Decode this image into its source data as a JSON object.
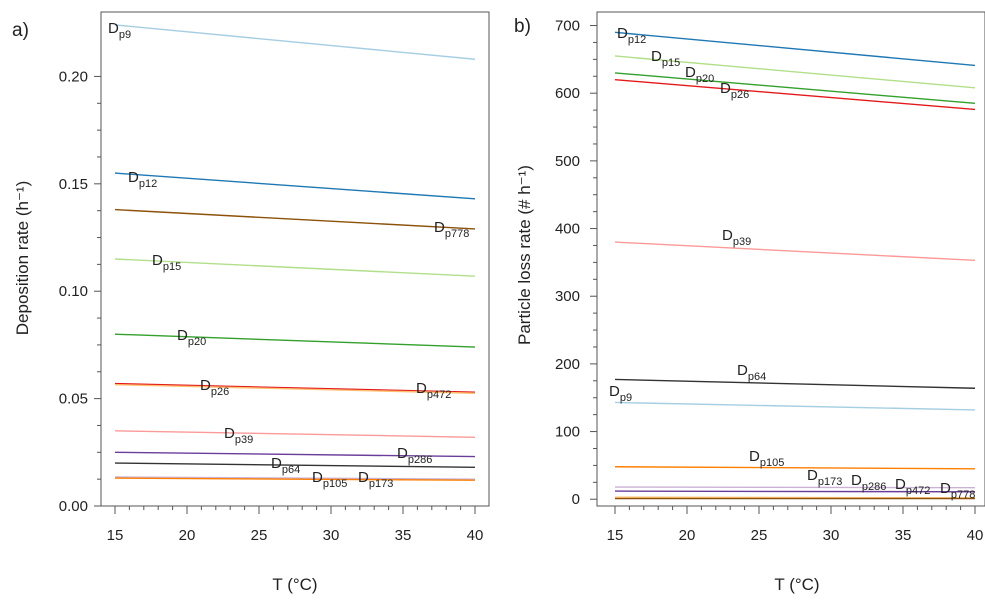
{
  "colors": {
    "dp9": "#a6cee3",
    "dp12": "#1f78b4",
    "dp15": "#b2df8a",
    "dp20": "#33a02c",
    "dp26": "#e31a1c",
    "dp39": "#fb9a99",
    "dp64": "#333333",
    "dp105": "#ff7f00",
    "dp173": "#cab2d6",
    "dp286": "#6a3d9a",
    "dp472": "#fdbf6f",
    "dp778": "#8c510a"
  },
  "chart_data": [
    {
      "type": "line",
      "panel_label": "a)",
      "xlabel": "T (°C)",
      "ylabel": "Deposition rate (h⁻¹)",
      "xlim": [
        15,
        40
      ],
      "ylim": [
        0,
        0.23
      ],
      "xticks": [
        "15",
        "20",
        "25",
        "30",
        "35",
        "40"
      ],
      "yticks": [
        "0.00",
        "0.05",
        "0.10",
        "0.15",
        "0.20"
      ],
      "series": [
        {
          "name": "Dp9",
          "label_main": "D",
          "label_sub": "p9",
          "x": [
            15,
            40
          ],
          "values": [
            0.224,
            0.208
          ],
          "color": "#a6cee3"
        },
        {
          "name": "Dp12",
          "label_main": "D",
          "label_sub": "p12",
          "x": [
            15,
            40
          ],
          "values": [
            0.155,
            0.143
          ],
          "color": "#1f78b4"
        },
        {
          "name": "Dp778",
          "label_main": "D",
          "label_sub": "p778",
          "x": [
            15,
            40
          ],
          "values": [
            0.138,
            0.129
          ],
          "color": "#8c510a"
        },
        {
          "name": "Dp15",
          "label_main": "D",
          "label_sub": "p15",
          "x": [
            15,
            40
          ],
          "values": [
            0.115,
            0.107
          ],
          "color": "#b2df8a"
        },
        {
          "name": "Dp20",
          "label_main": "D",
          "label_sub": "p20",
          "x": [
            15,
            40
          ],
          "values": [
            0.08,
            0.074
          ],
          "color": "#33a02c"
        },
        {
          "name": "Dp26",
          "label_main": "D",
          "label_sub": "p26",
          "x": [
            15,
            40
          ],
          "values": [
            0.057,
            0.053
          ],
          "color": "#e31a1c"
        },
        {
          "name": "Dp472",
          "label_main": "D",
          "label_sub": "p472",
          "x": [
            15,
            40
          ],
          "values": [
            0.0565,
            0.0525
          ],
          "color": "#fdbf6f"
        },
        {
          "name": "Dp39",
          "label_main": "D",
          "label_sub": "p39",
          "x": [
            15,
            40
          ],
          "values": [
            0.035,
            0.032
          ],
          "color": "#fb9a99"
        },
        {
          "name": "Dp286",
          "label_main": "D",
          "label_sub": "p286",
          "x": [
            15,
            40
          ],
          "values": [
            0.025,
            0.023
          ],
          "color": "#6a3d9a"
        },
        {
          "name": "Dp64",
          "label_main": "D",
          "label_sub": "p64",
          "x": [
            15,
            40
          ],
          "values": [
            0.02,
            0.018
          ],
          "color": "#333333"
        },
        {
          "name": "Dp173",
          "label_main": "D",
          "label_sub": "p173",
          "x": [
            15,
            40
          ],
          "values": [
            0.0135,
            0.0125
          ],
          "color": "#cab2d6"
        },
        {
          "name": "Dp105",
          "label_main": "D",
          "label_sub": "p105",
          "x": [
            15,
            40
          ],
          "values": [
            0.013,
            0.012
          ],
          "color": "#ff7f00"
        }
      ]
    },
    {
      "type": "line",
      "panel_label": "b)",
      "xlabel": "T (°C)",
      "ylabel": "Particle loss rate (# h⁻¹)",
      "xlim": [
        15,
        40
      ],
      "ylim": [
        -10,
        720
      ],
      "xticks": [
        "15",
        "20",
        "25",
        "30",
        "35",
        "40"
      ],
      "yticks": [
        "0",
        "100",
        "200",
        "300",
        "400",
        "500",
        "600",
        "700"
      ],
      "series": [
        {
          "name": "Dp12",
          "label_main": "D",
          "label_sub": "p12",
          "x": [
            15,
            40
          ],
          "values": [
            690,
            641
          ],
          "color": "#1f78b4"
        },
        {
          "name": "Dp15",
          "label_main": "D",
          "label_sub": "p15",
          "x": [
            15,
            40
          ],
          "values": [
            655,
            608
          ],
          "color": "#b2df8a"
        },
        {
          "name": "Dp20",
          "label_main": "D",
          "label_sub": "p20",
          "x": [
            15,
            40
          ],
          "values": [
            630,
            585
          ],
          "color": "#33a02c"
        },
        {
          "name": "Dp26",
          "label_main": "D",
          "label_sub": "p26",
          "x": [
            15,
            40
          ],
          "values": [
            620,
            576
          ],
          "color": "#e31a1c"
        },
        {
          "name": "Dp39",
          "label_main": "D",
          "label_sub": "p39",
          "x": [
            15,
            40
          ],
          "values": [
            380,
            353
          ],
          "color": "#fb9a99"
        },
        {
          "name": "Dp64",
          "label_main": "D",
          "label_sub": "p64",
          "x": [
            15,
            40
          ],
          "values": [
            177,
            164
          ],
          "color": "#333333"
        },
        {
          "name": "Dp9",
          "label_main": "D",
          "label_sub": "p9",
          "x": [
            15,
            40
          ],
          "values": [
            143,
            132
          ],
          "color": "#a6cee3"
        },
        {
          "name": "Dp105",
          "label_main": "D",
          "label_sub": "p105",
          "x": [
            15,
            40
          ],
          "values": [
            48,
            45
          ],
          "color": "#ff7f00"
        },
        {
          "name": "Dp173",
          "label_main": "D",
          "label_sub": "p173",
          "x": [
            15,
            40
          ],
          "values": [
            18,
            17
          ],
          "color": "#cab2d6"
        },
        {
          "name": "Dp286",
          "label_main": "D",
          "label_sub": "p286",
          "x": [
            15,
            40
          ],
          "values": [
            12,
            11
          ],
          "color": "#6a3d9a"
        },
        {
          "name": "Dp472",
          "label_main": "D",
          "label_sub": "p472",
          "x": [
            15,
            40
          ],
          "values": [
            3,
            2
          ],
          "color": "#fdbf6f"
        },
        {
          "name": "Dp778",
          "label_main": "D",
          "label_sub": "p778",
          "x": [
            15,
            40
          ],
          "values": [
            1,
            1
          ],
          "color": "#8c510a"
        }
      ]
    }
  ]
}
